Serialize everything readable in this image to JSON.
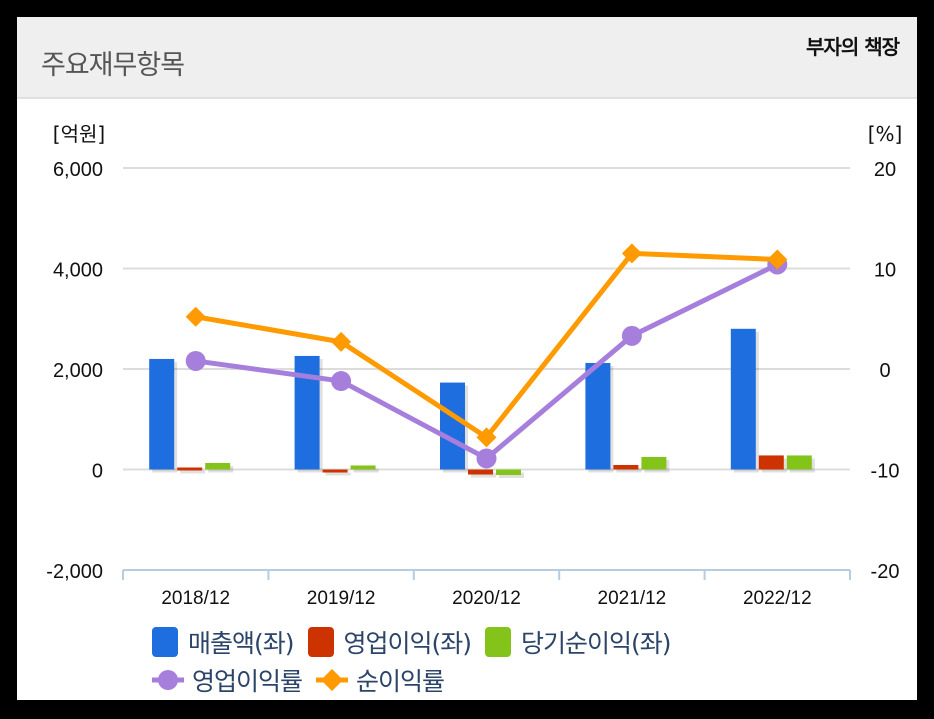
{
  "header": {
    "title": "주요재무항목",
    "brand": "부자의 책장"
  },
  "chart_data": {
    "type": "bar+line",
    "title": "주요재무항목",
    "categories": [
      "2018/12",
      "2019/12",
      "2020/12",
      "2021/12",
      "2022/12"
    ],
    "left_axis": {
      "label": "[억원]",
      "ticks": [
        "6,000",
        "4,000",
        "2,000",
        "0",
        "-2,000"
      ],
      "range": [
        -2000,
        6000
      ]
    },
    "right_axis": {
      "label": "[%]",
      "ticks": [
        "20",
        "10",
        "0",
        "-10",
        "-20"
      ],
      "range": [
        -20,
        20
      ]
    },
    "series": [
      {
        "name": "매출액(좌)",
        "type": "bar",
        "axis": "left",
        "color": "#1f6ee0",
        "values": [
          2200,
          2260,
          1730,
          2120,
          2800
        ]
      },
      {
        "name": "영업이익(좌)",
        "type": "bar",
        "axis": "left",
        "color": "#cc3300",
        "values": [
          40,
          0,
          -100,
          90,
          280
        ]
      },
      {
        "name": "당기순이익(좌)",
        "type": "bar",
        "axis": "left",
        "color": "#84c41a",
        "values": [
          130,
          80,
          -110,
          250,
          280
        ]
      },
      {
        "name": "영업이익률",
        "type": "line",
        "axis": "right",
        "marker": "circle",
        "color": "#a67fdc",
        "values": [
          0.8,
          -1.2,
          -8.9,
          3.3,
          10.4
        ]
      },
      {
        "name": "순이익률",
        "type": "line",
        "axis": "right",
        "marker": "diamond",
        "color": "#ff9a00",
        "values": [
          5.2,
          2.7,
          -6.8,
          11.5,
          10.9
        ]
      }
    ],
    "grid": true,
    "legend_position": "bottom"
  },
  "legend": {
    "items": [
      {
        "label": "매출액(좌)",
        "color": "#1f6ee0"
      },
      {
        "label": "영업이익(좌)",
        "color": "#cc3300"
      },
      {
        "label": "당기순이익(좌)",
        "color": "#84c41a"
      },
      {
        "label": "영업이익률",
        "color": "#a67fdc"
      },
      {
        "label": "순이익률",
        "color": "#ff9a00"
      }
    ]
  }
}
